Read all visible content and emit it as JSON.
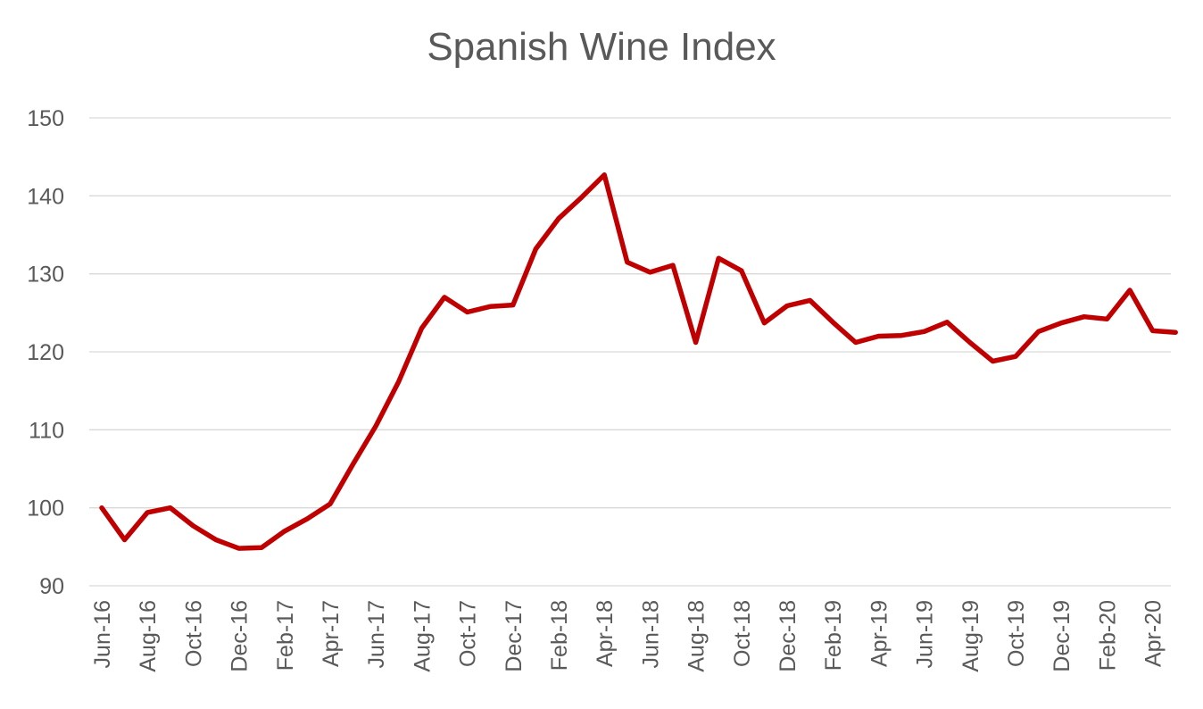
{
  "chart_data": {
    "type": "line",
    "title": "Spanish Wine Index",
    "xlabel": "",
    "ylabel": "",
    "ylim": [
      90,
      150
    ],
    "yticks": [
      90,
      100,
      110,
      120,
      130,
      140,
      150
    ],
    "grid": true,
    "legend": "none",
    "tick_every": 2,
    "categories": [
      "Jun-16",
      "Jul-16",
      "Aug-16",
      "Sep-16",
      "Oct-16",
      "Nov-16",
      "Dec-16",
      "Jan-17",
      "Feb-17",
      "Mar-17",
      "Apr-17",
      "May-17",
      "Jun-17",
      "Jul-17",
      "Aug-17",
      "Sep-17",
      "Oct-17",
      "Nov-17",
      "Dec-17",
      "Jan-18",
      "Feb-18",
      "Mar-18",
      "Apr-18",
      "May-18",
      "Jun-18",
      "Jul-18",
      "Aug-18",
      "Sep-18",
      "Oct-18",
      "Nov-18",
      "Dec-18",
      "Jan-19",
      "Feb-19",
      "Mar-19",
      "Apr-19",
      "May-19",
      "Jun-19",
      "Jul-19",
      "Aug-19",
      "Sep-19",
      "Oct-19",
      "Nov-19",
      "Dec-19",
      "Jan-20",
      "Feb-20",
      "Mar-20",
      "Apr-20",
      "May-20"
    ],
    "series": [
      {
        "color": "#C00000",
        "values": [
          100.0,
          95.9,
          99.4,
          100.0,
          97.7,
          95.9,
          94.8,
          94.9,
          97.0,
          98.6,
          100.5,
          105.6,
          110.5,
          116.2,
          123.0,
          127.0,
          125.1,
          125.8,
          126.0,
          133.2,
          137.1,
          139.8,
          142.7,
          131.5,
          130.2,
          131.1,
          121.2,
          132.0,
          130.4,
          123.7,
          125.9,
          126.6,
          123.8,
          121.2,
          122.0,
          122.1,
          122.6,
          123.8,
          121.2,
          118.8,
          119.4,
          122.6,
          123.7,
          124.5,
          124.2,
          127.9,
          122.7,
          122.5
        ]
      }
    ]
  }
}
